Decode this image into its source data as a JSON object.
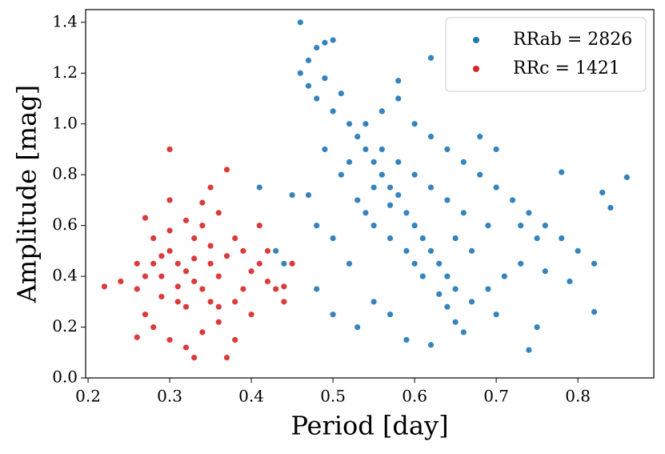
{
  "chart_data": {
    "type": "scatter",
    "xlabel": "Period [day]",
    "ylabel": "Amplitude [mag]",
    "xlim": [
      0.197,
      0.893
    ],
    "ylim": [
      0,
      1.45
    ],
    "xticks": [
      0.2,
      0.3,
      0.4,
      0.5,
      0.6,
      0.7,
      0.8
    ],
    "yticks": [
      {
        "value": 0,
        "label": "0.0"
      },
      0.2,
      0.4,
      0.6,
      0.8,
      {
        "value": 1,
        "label": "1.0"
      },
      1.2,
      1.4
    ],
    "legend": "upper right",
    "series": [
      {
        "name": "RRab = 2826",
        "color": "#1f77b4",
        "x": [
          0.46,
          0.47,
          0.48,
          0.49,
          0.5,
          0.46,
          0.47,
          0.48,
          0.49,
          0.5,
          0.51,
          0.52,
          0.53,
          0.54,
          0.55,
          0.56,
          0.57,
          0.58,
          0.59,
          0.6,
          0.61,
          0.62,
          0.63,
          0.64,
          0.65,
          0.64,
          0.65,
          0.66,
          0.62,
          0.59,
          0.55,
          0.52,
          0.5,
          0.48,
          0.47,
          0.45,
          0.44,
          0.41,
          0.43,
          0.48,
          0.5,
          0.53,
          0.57,
          0.55,
          0.57,
          0.53,
          0.51,
          0.49,
          0.52,
          0.54,
          0.56,
          0.58,
          0.6,
          0.62,
          0.64,
          0.66,
          0.68,
          0.7,
          0.72,
          0.74,
          0.76,
          0.78,
          0.8,
          0.82,
          0.84,
          0.86,
          0.83,
          0.78,
          0.75,
          0.73,
          0.71,
          0.69,
          0.67,
          0.7,
          0.75,
          0.74,
          0.82,
          0.79,
          0.76,
          0.73,
          0.7,
          0.68,
          0.66,
          0.64,
          0.62,
          0.6,
          0.58,
          0.56,
          0.54,
          0.6,
          0.62,
          0.58,
          0.55,
          0.57,
          0.59,
          0.61,
          0.63,
          0.65,
          0.67,
          0.69
        ],
        "values": [
          1.4,
          1.25,
          1.3,
          1.32,
          1.33,
          1.2,
          1.15,
          1.1,
          1.18,
          1.05,
          1.12,
          1.0,
          0.95,
          0.9,
          0.85,
          0.8,
          0.75,
          0.72,
          0.65,
          0.6,
          0.55,
          0.5,
          0.45,
          0.4,
          0.35,
          0.28,
          0.22,
          0.18,
          0.13,
          0.15,
          0.3,
          0.45,
          0.55,
          0.6,
          0.72,
          0.72,
          0.45,
          0.75,
          0.5,
          0.35,
          0.25,
          0.2,
          0.25,
          0.6,
          0.55,
          0.7,
          0.8,
          0.9,
          0.85,
          1.0,
          1.05,
          1.1,
          1.0,
          0.95,
          0.9,
          0.85,
          0.8,
          0.75,
          0.7,
          0.65,
          0.6,
          0.55,
          0.5,
          0.45,
          0.67,
          0.79,
          0.73,
          0.81,
          0.55,
          0.45,
          0.4,
          0.35,
          0.3,
          0.25,
          0.2,
          0.11,
          0.26,
          0.38,
          0.42,
          0.6,
          0.9,
          0.95,
          0.65,
          0.7,
          0.75,
          0.8,
          0.85,
          0.9,
          0.65,
          0.45,
          1.26,
          1.17,
          0.75,
          0.68,
          0.5,
          0.4,
          0.33,
          0.55,
          0.5,
          0.6
        ]
      },
      {
        "name": "RRc = 1421",
        "color": "#d62728",
        "x": [
          0.22,
          0.24,
          0.26,
          0.27,
          0.27,
          0.28,
          0.29,
          0.3,
          0.3,
          0.31,
          0.32,
          0.33,
          0.33,
          0.34,
          0.35,
          0.35,
          0.36,
          0.37,
          0.37,
          0.38,
          0.39,
          0.4,
          0.41,
          0.42,
          0.43,
          0.44,
          0.45,
          0.26,
          0.28,
          0.3,
          0.32,
          0.34,
          0.36,
          0.38,
          0.4,
          0.28,
          0.3,
          0.32,
          0.34,
          0.36,
          0.38,
          0.26,
          0.27,
          0.29,
          0.31,
          0.33,
          0.35,
          0.37,
          0.39,
          0.41,
          0.29,
          0.31,
          0.33,
          0.35,
          0.32,
          0.3,
          0.34,
          0.36,
          0.42,
          0.44
        ],
        "values": [
          0.36,
          0.38,
          0.35,
          0.63,
          0.25,
          0.45,
          0.4,
          0.5,
          0.9,
          0.3,
          0.42,
          0.55,
          0.08,
          0.35,
          0.45,
          0.75,
          0.4,
          0.82,
          0.08,
          0.3,
          0.5,
          0.42,
          0.6,
          0.38,
          0.35,
          0.3,
          0.45,
          0.16,
          0.2,
          0.15,
          0.12,
          0.18,
          0.22,
          0.15,
          0.25,
          0.55,
          0.58,
          0.62,
          0.6,
          0.65,
          0.55,
          0.45,
          0.4,
          0.32,
          0.45,
          0.38,
          0.3,
          0.48,
          0.35,
          0.45,
          0.48,
          0.36,
          0.47,
          0.52,
          0.28,
          0.7,
          0.69,
          0.28,
          0.5,
          0.36
        ]
      }
    ]
  }
}
